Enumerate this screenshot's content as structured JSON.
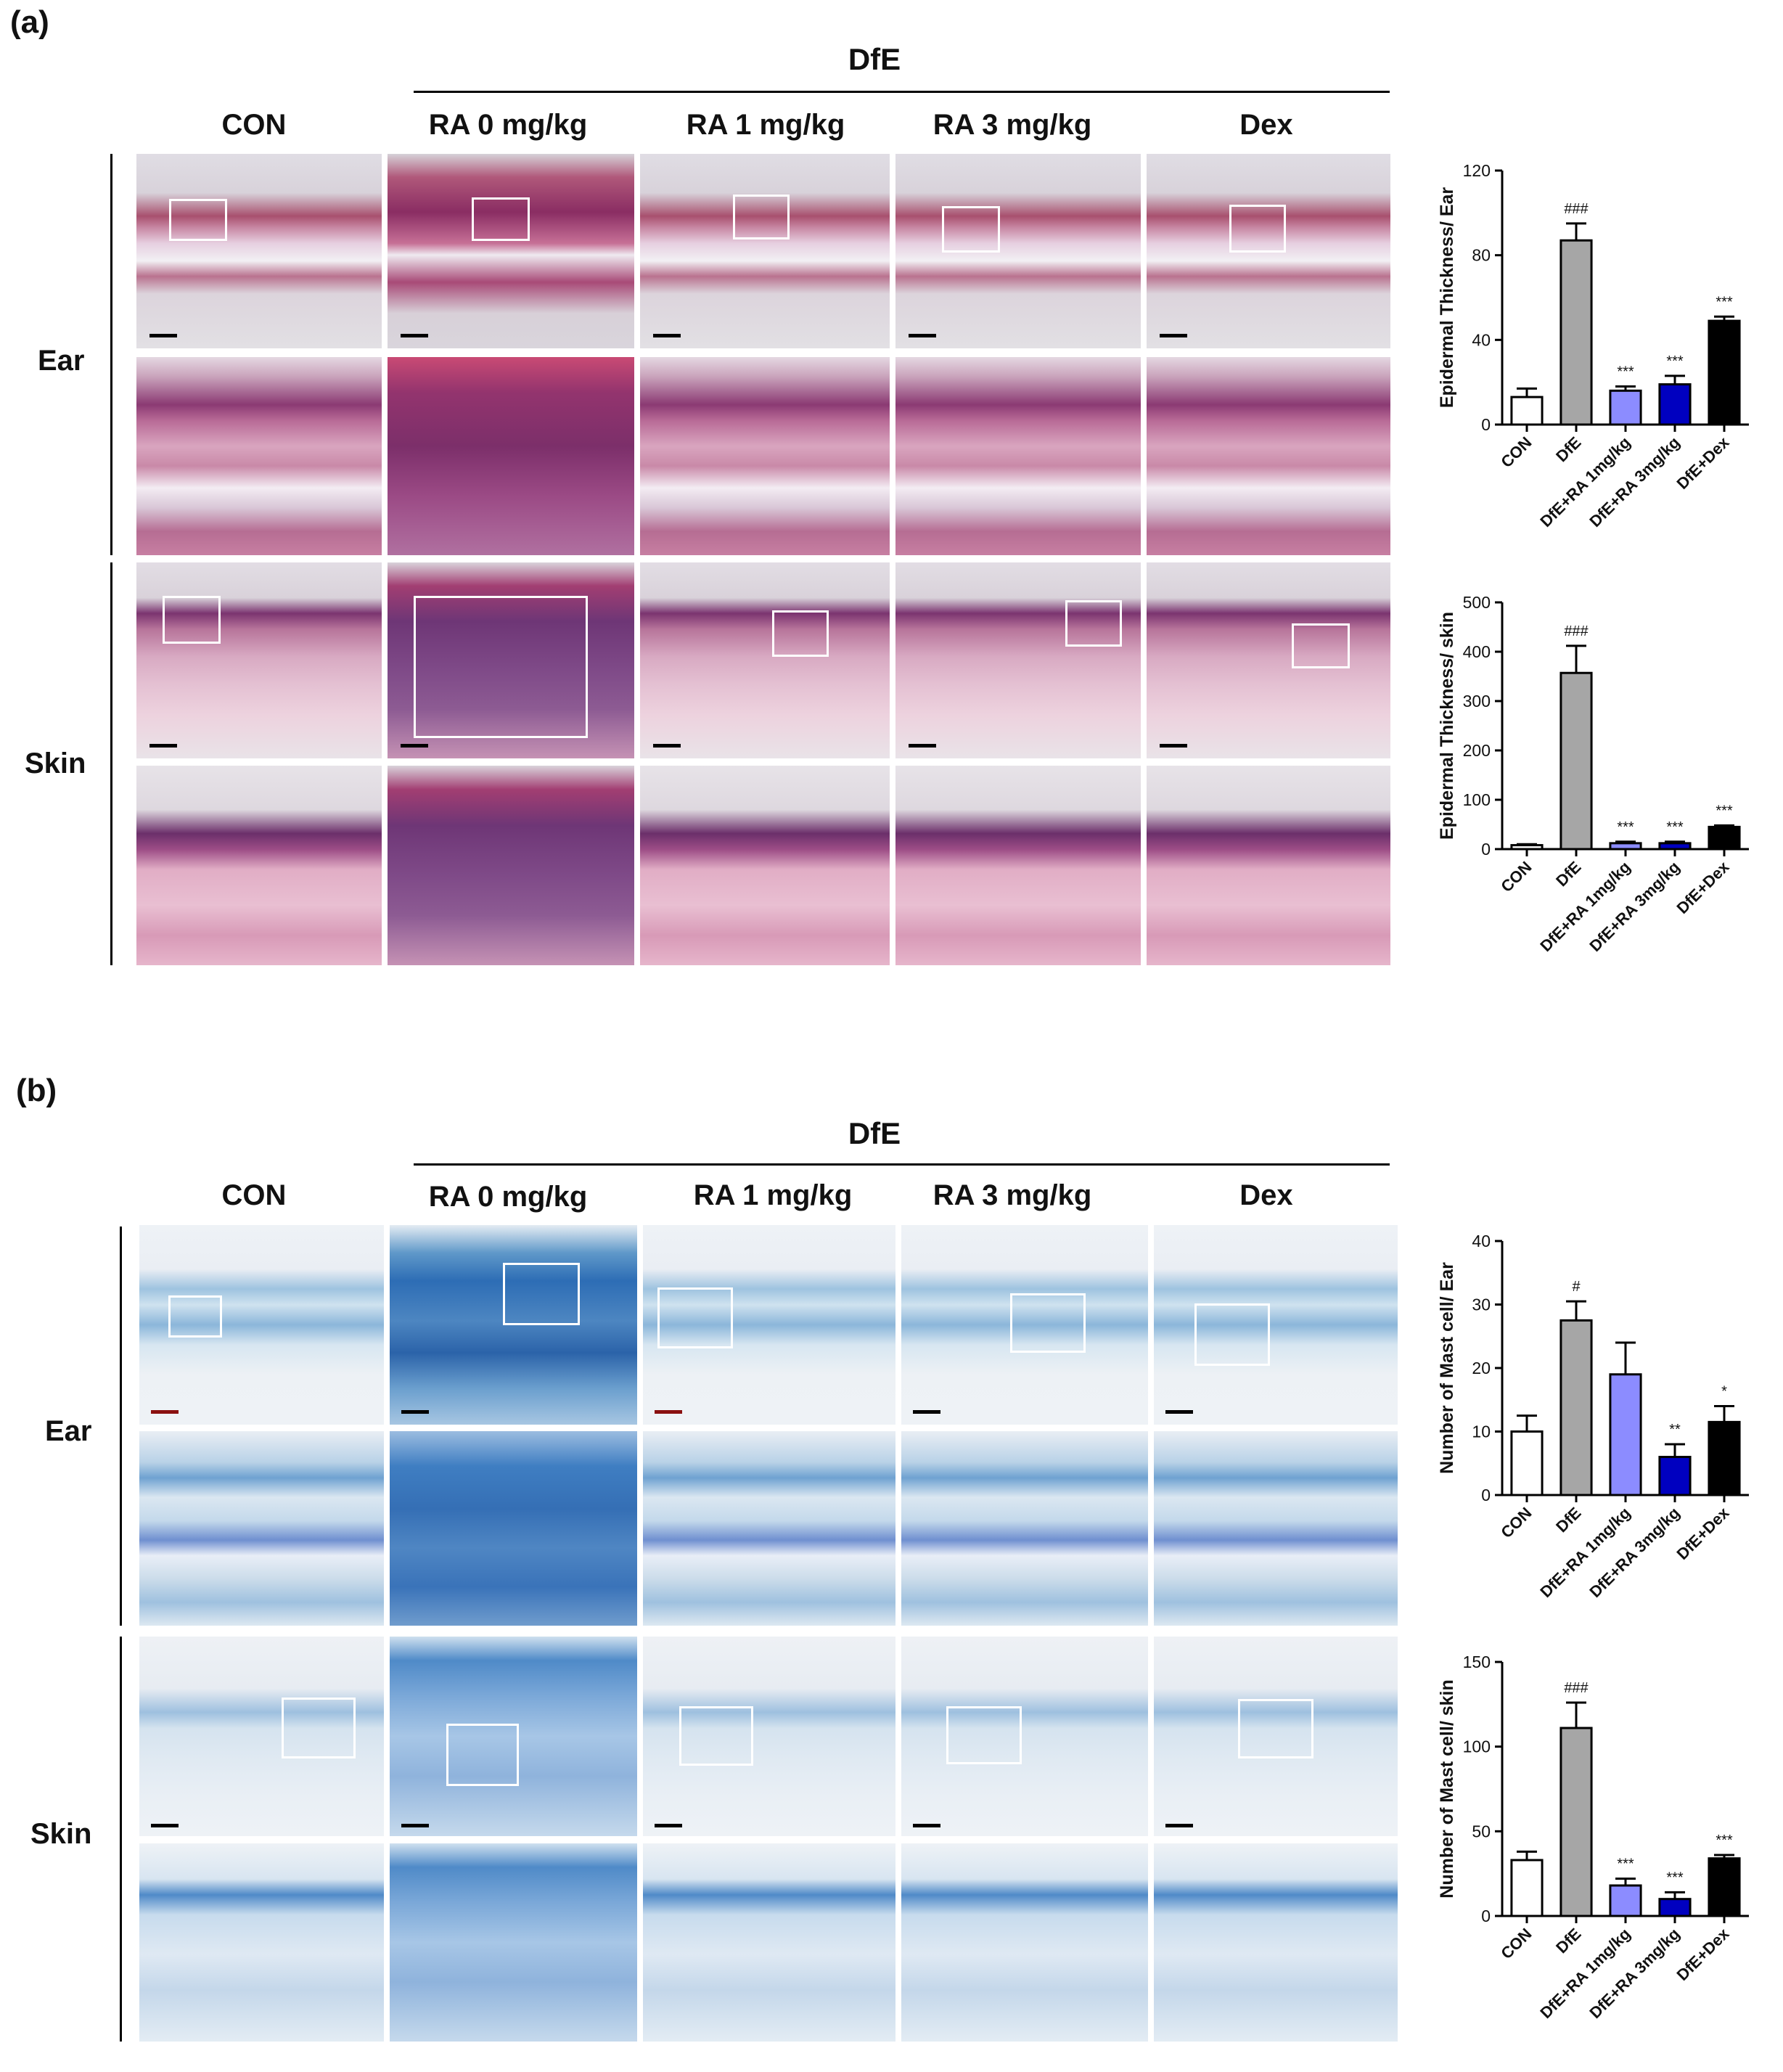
{
  "panels": [
    {
      "letter": "(a)",
      "group_label": "DfE",
      "columns": [
        "CON",
        "RA 0 mg/kg",
        "RA 1 mg/kg",
        "RA 3 mg/kg",
        "Dex"
      ],
      "rows": [
        "Ear",
        "Skin"
      ],
      "charts": [
        {
          "type": "bar",
          "ylabel": "Epidermal Thickness/ Ear",
          "categories": [
            "CON",
            "DfE",
            "DfE+RA 1mg/kg",
            "DfE+RA 3mg/kg",
            "DfE+Dex"
          ],
          "values": [
            13,
            87,
            16,
            19,
            49
          ],
          "errors": [
            4,
            8,
            2,
            4,
            2
          ],
          "significance": [
            "",
            "###",
            "***",
            "***",
            "***"
          ],
          "ylim": [
            0,
            120
          ],
          "yticks": [
            0,
            40,
            80,
            120
          ],
          "colors": [
            "#ffffff",
            "#a6a6a6",
            "#8c8cff",
            "#0000c0",
            "#000000"
          ]
        },
        {
          "type": "bar",
          "ylabel": "Epidermal Thickness/ skin",
          "categories": [
            "CON",
            "DfE",
            "DfE+RA 1mg/kg",
            "DfE+RA 3mg/kg",
            "DfE+Dex"
          ],
          "values": [
            8,
            357,
            12,
            12,
            45
          ],
          "errors": [
            2,
            55,
            3,
            3,
            3
          ],
          "significance": [
            "",
            "###",
            "***",
            "***",
            "***"
          ],
          "ylim": [
            0,
            500
          ],
          "yticks": [
            0,
            100,
            200,
            300,
            400,
            500
          ],
          "colors": [
            "#ffffff",
            "#a6a6a6",
            "#8c8cff",
            "#0000c0",
            "#000000"
          ]
        }
      ]
    },
    {
      "letter": "(b)",
      "group_label": "DfE",
      "columns": [
        "CON",
        "RA 0 mg/kg",
        "RA 1 mg/kg",
        "RA 3 mg/kg",
        "Dex"
      ],
      "rows": [
        "Ear",
        "Skin"
      ],
      "charts": [
        {
          "type": "bar",
          "ylabel": "Number of Mast cell/ Ear",
          "categories": [
            "CON",
            "DfE",
            "DfE+RA 1mg/kg",
            "DfE+RA 3mg/kg",
            "DfE+Dex"
          ],
          "values": [
            10,
            27.5,
            19,
            6,
            11.5
          ],
          "errors": [
            2.5,
            3,
            5,
            2,
            2.5
          ],
          "significance": [
            "",
            "#",
            "",
            "**",
            "*"
          ],
          "ylim": [
            0,
            40
          ],
          "yticks": [
            0,
            10,
            20,
            30,
            40
          ],
          "colors": [
            "#ffffff",
            "#a6a6a6",
            "#8c8cff",
            "#0000c0",
            "#000000"
          ]
        },
        {
          "type": "bar",
          "ylabel": "Number of Mast cell/ skin",
          "categories": [
            "CON",
            "DfE",
            "DfE+RA 1mg/kg",
            "DfE+RA 3mg/kg",
            "DfE+Dex"
          ],
          "values": [
            33,
            111,
            18,
            10,
            34
          ],
          "errors": [
            5,
            15,
            4,
            4,
            2
          ],
          "significance": [
            "",
            "###",
            "***",
            "***",
            "***"
          ],
          "ylim": [
            0,
            150
          ],
          "yticks": [
            0,
            50,
            100,
            150
          ],
          "colors": [
            "#ffffff",
            "#a6a6a6",
            "#8c8cff",
            "#0000c0",
            "#000000"
          ]
        }
      ]
    }
  ],
  "chart_data": [
    {
      "type": "bar",
      "ylabel": "Epidermal Thickness/ Ear",
      "categories": [
        "CON",
        "DfE",
        "DfE+RA 1mg/kg",
        "DfE+RA 3mg/kg",
        "DfE+Dex"
      ],
      "values": [
        13,
        87,
        16,
        19,
        49
      ],
      "ylim": [
        0,
        120
      ]
    },
    {
      "type": "bar",
      "ylabel": "Epidermal Thickness/ skin",
      "categories": [
        "CON",
        "DfE",
        "DfE+RA 1mg/kg",
        "DfE+RA 3mg/kg",
        "DfE+Dex"
      ],
      "values": [
        8,
        357,
        12,
        12,
        45
      ],
      "ylim": [
        0,
        500
      ]
    },
    {
      "type": "bar",
      "ylabel": "Number of Mast cell/ Ear",
      "categories": [
        "CON",
        "DfE",
        "DfE+RA 1mg/kg",
        "DfE+RA 3mg/kg",
        "DfE+Dex"
      ],
      "values": [
        10,
        27.5,
        19,
        6,
        11.5
      ],
      "ylim": [
        0,
        40
      ]
    },
    {
      "type": "bar",
      "ylabel": "Number of Mast cell/ skin",
      "categories": [
        "CON",
        "DfE",
        "DfE+RA 1mg/kg",
        "DfE+RA 3mg/kg",
        "DfE+Dex"
      ],
      "values": [
        33,
        111,
        18,
        10,
        34
      ],
      "ylim": [
        0,
        150
      ]
    }
  ]
}
